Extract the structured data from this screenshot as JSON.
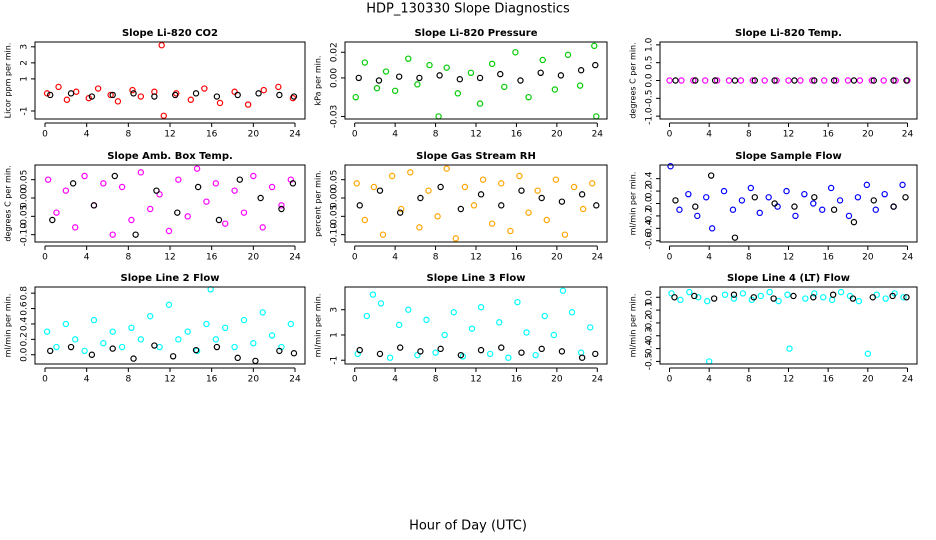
{
  "title": "HDP_130330  Slope Diagnostics",
  "xlabel": "Hour of Day (UTC)",
  "chart_data": [
    {
      "type": "scatter",
      "title": "Slope Li-820 CO2",
      "ylabel": "Licor ppm per min.",
      "xlim": [
        -0.96,
        24.96
      ],
      "xticks": [
        0,
        4,
        8,
        12,
        16,
        20,
        24
      ],
      "ylim": [
        -1.5,
        3.3
      ],
      "yticks": [
        -1,
        1,
        2,
        3
      ],
      "series": [
        {
          "color": "#ff0000",
          "x": [
            0.2,
            1.3,
            2.1,
            3.0,
            4.2,
            5.1,
            6.3,
            7.0,
            8.4,
            9.2,
            10.5,
            11.2,
            11.4,
            12.6,
            14.0,
            15.3,
            16.8,
            18.2,
            19.5,
            21.0,
            22.4,
            23.8
          ],
          "values": [
            0.1,
            0.5,
            -0.3,
            0.2,
            -0.2,
            0.4,
            0.0,
            -0.4,
            0.3,
            -0.1,
            0.2,
            3.1,
            -1.3,
            0.1,
            -0.3,
            0.4,
            -0.5,
            0.2,
            -0.6,
            0.3,
            0.5,
            -0.2
          ]
        },
        {
          "color": "#000000",
          "x": [
            0.5,
            2.5,
            4.5,
            6.5,
            8.5,
            10.5,
            12.5,
            14.5,
            16.5,
            18.5,
            20.5,
            22.5,
            23.9
          ],
          "values": [
            0.0,
            0.1,
            -0.1,
            0.0,
            0.1,
            -0.1,
            0.0,
            0.1,
            -0.1,
            0.0,
            0.1,
            0.0,
            -0.1
          ]
        }
      ]
    },
    {
      "type": "scatter",
      "title": "Slope Li-820 Pressure",
      "ylabel": "kPa per min.",
      "xlim": [
        -0.96,
        24.96
      ],
      "xticks": [
        0,
        4,
        8,
        12,
        16,
        20,
        24
      ],
      "ylim": [
        -0.032,
        0.028
      ],
      "yticks": [
        -0.03,
        {
          "value": 0,
          "label": "0.00"
        },
        0.02
      ],
      "series": [
        {
          "color": "#00cc00",
          "x": [
            0.1,
            1.0,
            2.2,
            3.1,
            4.0,
            5.3,
            6.2,
            7.4,
            8.3,
            9.1,
            10.2,
            11.5,
            12.4,
            13.6,
            14.8,
            15.9,
            17.2,
            18.6,
            19.8,
            21.1,
            22.3,
            23.7,
            23.9
          ],
          "values": [
            -0.015,
            0.012,
            -0.008,
            0.005,
            -0.01,
            0.015,
            -0.005,
            0.01,
            -0.03,
            0.008,
            -0.012,
            0.004,
            -0.02,
            0.011,
            -0.007,
            0.02,
            -0.015,
            0.014,
            -0.009,
            0.018,
            -0.006,
            0.025,
            -0.03
          ]
        },
        {
          "color": "#000000",
          "x": [
            0.4,
            2.4,
            4.4,
            6.4,
            8.4,
            10.4,
            12.4,
            14.4,
            16.4,
            18.4,
            20.4,
            22.4,
            23.8
          ],
          "values": [
            0.0,
            -0.002,
            0.001,
            0.0,
            0.002,
            -0.001,
            0.0,
            0.003,
            -0.002,
            0.004,
            0.002,
            0.006,
            0.01
          ]
        }
      ]
    },
    {
      "type": "scatter",
      "title": "Slope Li-820 Temp.",
      "ylabel": "degrees C per min.",
      "xlim": [
        -0.96,
        24.96
      ],
      "xticks": [
        0,
        4,
        8,
        12,
        16,
        20,
        24
      ],
      "ylim": [
        -1.08,
        1.08
      ],
      "yticks": [
        {
          "value": -1,
          "label": "-1.0"
        },
        -0.5,
        {
          "value": 0,
          "label": "0.0"
        },
        0.5,
        {
          "value": 1,
          "label": "1.0"
        }
      ],
      "series": [
        {
          "color": "#ff00ff",
          "x": [
            0.0,
            1.2,
            2.4,
            3.6,
            4.8,
            6.0,
            7.2,
            8.4,
            9.6,
            10.8,
            12.0,
            13.2,
            14.4,
            15.6,
            16.8,
            18.0,
            19.2,
            20.4,
            21.6,
            22.8,
            24.0
          ],
          "values": [
            0,
            0,
            0,
            0,
            0,
            0,
            0,
            0,
            0,
            0,
            0,
            0,
            0,
            0,
            0,
            0,
            0,
            0,
            0,
            0,
            0
          ]
        },
        {
          "color": "#000000",
          "x": [
            0.6,
            2.6,
            4.6,
            6.6,
            8.6,
            10.6,
            12.6,
            14.6,
            16.6,
            18.6,
            20.6,
            22.6,
            23.9
          ],
          "values": [
            0,
            0,
            0,
            0,
            0,
            0,
            0,
            0,
            0,
            0,
            0,
            0,
            0
          ]
        }
      ]
    },
    {
      "type": "scatter",
      "title": "Slope Amb. Box Temp.",
      "ylabel": "degrees C per min.",
      "xlim": [
        -0.96,
        24.96
      ],
      "xticks": [
        0,
        4,
        8,
        12,
        16,
        20,
        24
      ],
      "ylim": [
        -0.12,
        0.09
      ],
      "yticks": [
        {
          "value": -0.1,
          "label": "-0.10"
        },
        -0.05,
        {
          "value": 0,
          "label": "0.00"
        },
        0.05
      ],
      "series": [
        {
          "color": "#ff00ff",
          "x": [
            0.3,
            1.1,
            2.0,
            2.9,
            3.8,
            4.7,
            5.6,
            6.5,
            7.4,
            8.3,
            9.2,
            10.1,
            11.0,
            11.9,
            12.8,
            13.7,
            14.6,
            15.5,
            16.4,
            17.3,
            18.2,
            19.1,
            20.0,
            20.9,
            21.8,
            22.7,
            23.6
          ],
          "values": [
            0.05,
            -0.04,
            0.02,
            -0.08,
            0.06,
            -0.02,
            0.04,
            -0.1,
            0.03,
            -0.06,
            0.07,
            -0.03,
            0.01,
            -0.09,
            0.05,
            -0.05,
            0.08,
            -0.01,
            0.04,
            -0.07,
            0.02,
            -0.04,
            0.06,
            -0.08,
            0.03,
            -0.02,
            0.05
          ]
        },
        {
          "color": "#000000",
          "x": [
            0.7,
            2.7,
            4.7,
            6.7,
            8.7,
            10.7,
            12.7,
            14.7,
            16.7,
            18.7,
            20.7,
            22.7,
            23.8
          ],
          "values": [
            -0.06,
            0.04,
            -0.02,
            0.06,
            -0.1,
            0.02,
            -0.04,
            0.03,
            -0.06,
            0.05,
            0.0,
            -0.03,
            0.04
          ]
        }
      ]
    },
    {
      "type": "scatter",
      "title": "Slope Gas Stream RH",
      "ylabel": "percent per min.",
      "xlim": [
        -0.96,
        24.96
      ],
      "xticks": [
        0,
        4,
        8,
        12,
        16,
        20,
        24
      ],
      "ylim": [
        -0.12,
        0.09
      ],
      "yticks": [
        {
          "value": -0.1,
          "label": "-0.10"
        },
        -0.05,
        {
          "value": 0,
          "label": "0.00"
        },
        0.05
      ],
      "series": [
        {
          "color": "#ffa500",
          "x": [
            0.2,
            1.0,
            1.9,
            2.8,
            3.7,
            4.6,
            5.5,
            6.4,
            7.3,
            8.2,
            9.1,
            10.0,
            10.9,
            11.8,
            12.7,
            13.6,
            14.5,
            15.4,
            16.3,
            17.2,
            18.1,
            19.0,
            19.9,
            20.8,
            21.7,
            22.6,
            23.5
          ],
          "values": [
            0.04,
            -0.06,
            0.03,
            -0.1,
            0.06,
            -0.03,
            0.07,
            -0.08,
            0.02,
            -0.05,
            0.08,
            -0.11,
            0.03,
            -0.02,
            0.05,
            -0.07,
            0.04,
            -0.09,
            0.06,
            -0.04,
            0.02,
            -0.06,
            0.05,
            -0.1,
            0.03,
            -0.03,
            0.04
          ]
        },
        {
          "color": "#000000",
          "x": [
            0.5,
            2.5,
            4.5,
            6.5,
            8.5,
            10.5,
            12.5,
            14.5,
            16.5,
            18.5,
            20.5,
            22.5,
            23.9
          ],
          "values": [
            -0.02,
            0.02,
            -0.04,
            0.0,
            0.03,
            -0.03,
            0.01,
            -0.02,
            0.02,
            0.0,
            -0.01,
            0.01,
            -0.02
          ]
        }
      ]
    },
    {
      "type": "scatter",
      "title": "Slope Sample Flow",
      "ylabel": "ml/min per min.",
      "xlim": [
        -0.96,
        24.96
      ],
      "xticks": [
        0,
        4,
        8,
        12,
        16,
        20,
        24
      ],
      "ylim": [
        -0.62,
        0.62
      ],
      "yticks": [
        -0.6,
        -0.4,
        -0.2,
        {
          "value": 0,
          "label": "0.0"
        },
        0.2,
        0.4
      ],
      "series": [
        {
          "color": "#0000ff",
          "x": [
            0.1,
            1.0,
            1.9,
            2.8,
            3.7,
            4.3,
            5.5,
            6.4,
            7.3,
            8.2,
            9.1,
            10.0,
            10.9,
            11.8,
            12.7,
            13.6,
            14.5,
            15.4,
            16.3,
            17.2,
            18.1,
            19.0,
            19.9,
            20.8,
            21.7,
            22.6,
            23.5
          ],
          "values": [
            0.6,
            -0.1,
            0.15,
            -0.2,
            0.1,
            -0.4,
            0.2,
            -0.1,
            0.05,
            0.25,
            -0.15,
            0.1,
            -0.05,
            0.2,
            -0.2,
            0.15,
            0.0,
            -0.1,
            0.25,
            0.05,
            -0.2,
            0.1,
            0.3,
            -0.1,
            0.15,
            -0.05,
            0.3
          ]
        },
        {
          "color": "#000000",
          "x": [
            0.6,
            2.6,
            4.2,
            6.6,
            8.6,
            10.6,
            12.6,
            14.6,
            16.6,
            18.6,
            20.6,
            22.6,
            23.8
          ],
          "values": [
            0.05,
            -0.05,
            0.45,
            -0.55,
            0.1,
            0.0,
            -0.05,
            0.1,
            -0.1,
            -0.3,
            0.05,
            -0.05,
            0.1
          ]
        }
      ]
    },
    {
      "type": "scatter",
      "title": "Slope Line 2 Flow",
      "ylabel": "ml/min per min.",
      "xlim": [
        -0.96,
        24.96
      ],
      "xticks": [
        0,
        4,
        8,
        12,
        16,
        20,
        24
      ],
      "ylim": [
        -0.12,
        0.88
      ],
      "yticks": [
        {
          "value": 0,
          "label": "0.0"
        },
        0.2,
        0.4,
        0.6,
        0.8
      ],
      "series": [
        {
          "color": "#00ffff",
          "x": [
            0.2,
            1.1,
            2.0,
            2.9,
            3.8,
            4.7,
            5.6,
            6.5,
            7.4,
            8.3,
            9.2,
            10.1,
            11.0,
            11.9,
            12.8,
            13.7,
            14.6,
            15.5,
            15.9,
            16.4,
            17.3,
            18.2,
            19.1,
            20.0,
            20.9,
            21.8,
            22.7,
            23.6
          ],
          "values": [
            0.3,
            0.1,
            0.4,
            0.2,
            0.05,
            0.45,
            0.15,
            0.3,
            0.1,
            0.35,
            0.2,
            0.5,
            0.1,
            0.65,
            0.2,
            0.3,
            0.05,
            0.4,
            0.85,
            0.2,
            0.35,
            0.1,
            0.45,
            0.15,
            0.55,
            0.25,
            0.1,
            0.4
          ]
        },
        {
          "color": "#000000",
          "x": [
            0.5,
            2.5,
            4.5,
            6.5,
            8.5,
            10.5,
            12.3,
            14.5,
            16.5,
            18.5,
            20.2,
            22.5,
            23.9
          ],
          "values": [
            0.05,
            0.1,
            0.0,
            0.08,
            -0.05,
            0.12,
            -0.02,
            0.06,
            0.1,
            -0.04,
            -0.08,
            0.05,
            0.02
          ]
        }
      ]
    },
    {
      "type": "scatter",
      "title": "Slope Line 3 Flow",
      "ylabel": "ml/min per min.",
      "xlim": [
        -0.96,
        24.96
      ],
      "xticks": [
        0,
        4,
        8,
        12,
        16,
        20,
        24
      ],
      "ylim": [
        -1.3,
        4.8
      ],
      "yticks": [
        -1,
        1,
        3
      ],
      "series": [
        {
          "color": "#00ffff",
          "x": [
            0.3,
            1.2,
            1.8,
            2.6,
            3.5,
            4.4,
            5.3,
            6.2,
            7.1,
            8.0,
            8.9,
            9.8,
            10.7,
            11.6,
            12.5,
            13.4,
            14.3,
            15.2,
            16.1,
            17.0,
            17.9,
            18.8,
            19.7,
            20.6,
            21.5,
            22.4,
            23.3
          ],
          "values": [
            -0.5,
            2.5,
            4.2,
            3.5,
            -0.8,
            1.8,
            3.0,
            -0.6,
            2.2,
            -0.4,
            1.0,
            2.8,
            -0.7,
            1.5,
            3.2,
            -0.5,
            2.0,
            -0.8,
            3.6,
            1.2,
            -0.6,
            2.5,
            1.0,
            4.5,
            2.8,
            -0.4,
            1.6
          ]
        },
        {
          "color": "#000000",
          "x": [
            0.5,
            2.5,
            4.5,
            6.5,
            8.5,
            10.5,
            12.5,
            14.5,
            16.5,
            18.5,
            20.5,
            22.5,
            23.8
          ],
          "values": [
            -0.2,
            -0.5,
            0.0,
            -0.3,
            -0.1,
            -0.6,
            -0.2,
            0.0,
            -0.4,
            -0.1,
            -0.3,
            -0.8,
            -0.5
          ]
        }
      ]
    },
    {
      "type": "scatter",
      "title": "Slope Line 4 (LT) Flow",
      "ylabel": "ml/min per min.",
      "xlim": [
        -0.96,
        24.96
      ],
      "xticks": [
        0,
        4,
        8,
        12,
        16,
        20,
        24
      ],
      "ylim": [
        -0.52,
        0.08
      ],
      "yticks": [
        -0.5,
        -0.4,
        -0.3,
        -0.2,
        -0.1,
        {
          "value": 0,
          "label": "0.0"
        }
      ],
      "series": [
        {
          "color": "#00ffff",
          "x": [
            0.2,
            1.1,
            2.0,
            2.9,
            3.8,
            4.0,
            5.6,
            6.5,
            7.4,
            8.3,
            9.2,
            10.1,
            11.0,
            11.9,
            12.1,
            13.7,
            14.6,
            15.5,
            16.4,
            17.3,
            18.2,
            19.1,
            20.0,
            20.9,
            21.8,
            22.7,
            23.6
          ],
          "values": [
            0.03,
            -0.02,
            0.04,
            0.0,
            -0.03,
            -0.5,
            0.02,
            -0.01,
            0.03,
            -0.02,
            0.01,
            0.04,
            -0.03,
            0.02,
            -0.4,
            -0.01,
            0.03,
            0.0,
            -0.02,
            0.04,
            0.01,
            -0.03,
            -0.44,
            0.02,
            -0.01,
            0.03,
            0.0
          ]
        },
        {
          "color": "#000000",
          "x": [
            0.5,
            2.5,
            4.5,
            6.5,
            8.5,
            10.5,
            12.5,
            14.5,
            16.5,
            18.5,
            20.5,
            22.5,
            23.9
          ],
          "values": [
            0.0,
            0.01,
            -0.01,
            0.02,
            0.0,
            -0.01,
            0.01,
            0.0,
            0.02,
            -0.01,
            0.0,
            0.01,
            0.0
          ]
        }
      ]
    }
  ]
}
